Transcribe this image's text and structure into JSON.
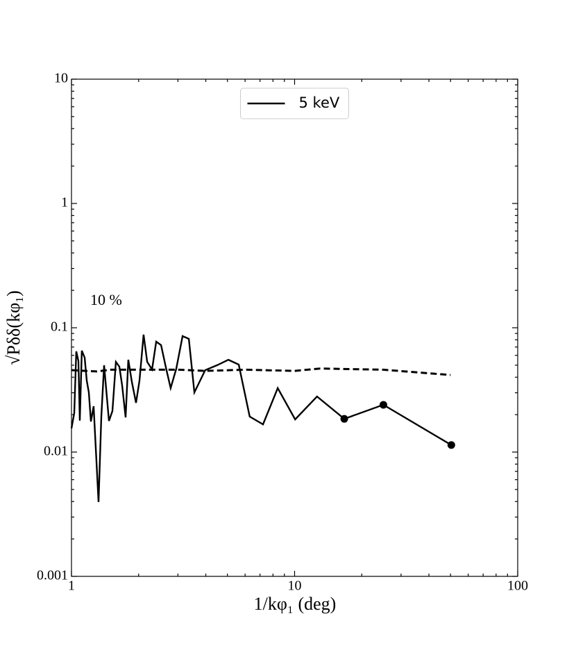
{
  "chart_data": {
    "type": "line",
    "xlabel": "1/kφ₁ (deg)",
    "ylabel": "√Pδδ(kφ₁)",
    "annotations": [
      "10 %"
    ],
    "xscale": "log",
    "yscale": "log",
    "xlim": [
      1,
      100
    ],
    "xticks": [
      1,
      10,
      100
    ],
    "ylim": [
      0.001,
      10
    ],
    "yticks": [
      0.001,
      0.01,
      0.1,
      1,
      10
    ],
    "legend": "upper center",
    "series": [
      {
        "name": "5 keV",
        "color": "#000000",
        "style": "solid",
        "x": [
          1,
          1.029,
          1.051,
          1.074,
          1.09,
          1.113,
          1.146,
          1.171,
          1.196,
          1.222,
          1.257,
          1.322,
          1.361,
          1.4,
          1.472,
          1.526,
          1.582,
          1.639,
          1.687,
          1.748,
          1.798,
          1.865,
          1.947,
          2.018,
          2.105,
          2.184,
          2.296,
          2.397,
          2.521,
          2.652,
          2.782,
          2.948,
          3.147,
          3.357,
          3.554,
          3.975,
          4.495,
          5.05,
          5.62,
          6.29,
          7.22,
          8.4,
          10.06,
          12.6,
          16.7,
          25,
          50.4
        ],
        "values": [
          0.0155,
          0.0206,
          0.0646,
          0.054,
          0.0179,
          0.0654,
          0.0575,
          0.0376,
          0.0302,
          0.0176,
          0.0234,
          0.00396,
          0.0193,
          0.0499,
          0.0178,
          0.0214,
          0.0532,
          0.0486,
          0.0344,
          0.019,
          0.0553,
          0.0367,
          0.0249,
          0.0376,
          0.088,
          0.0532,
          0.0462,
          0.0773,
          0.0725,
          0.0475,
          0.0327,
          0.0468,
          0.0857,
          0.0814,
          0.0302,
          0.0456,
          0.05,
          0.0553,
          0.0506,
          0.0193,
          0.0167,
          0.0327,
          0.0183,
          0.028,
          0.0185,
          0.024,
          0.0114
        ]
      },
      {
        "color": "#000000",
        "style": "markers",
        "x": [
          16.7,
          25,
          50.4
        ],
        "values": [
          0.0185,
          0.024,
          0.0114
        ]
      },
      {
        "color": "#000000",
        "style": "dashed",
        "x": [
          1,
          1.3,
          1.5,
          2,
          3,
          4,
          6,
          10,
          13,
          25,
          50
        ],
        "values": [
          0.0456,
          0.0445,
          0.046,
          0.046,
          0.046,
          0.045,
          0.046,
          0.045,
          0.047,
          0.046,
          0.0417
        ]
      }
    ]
  }
}
